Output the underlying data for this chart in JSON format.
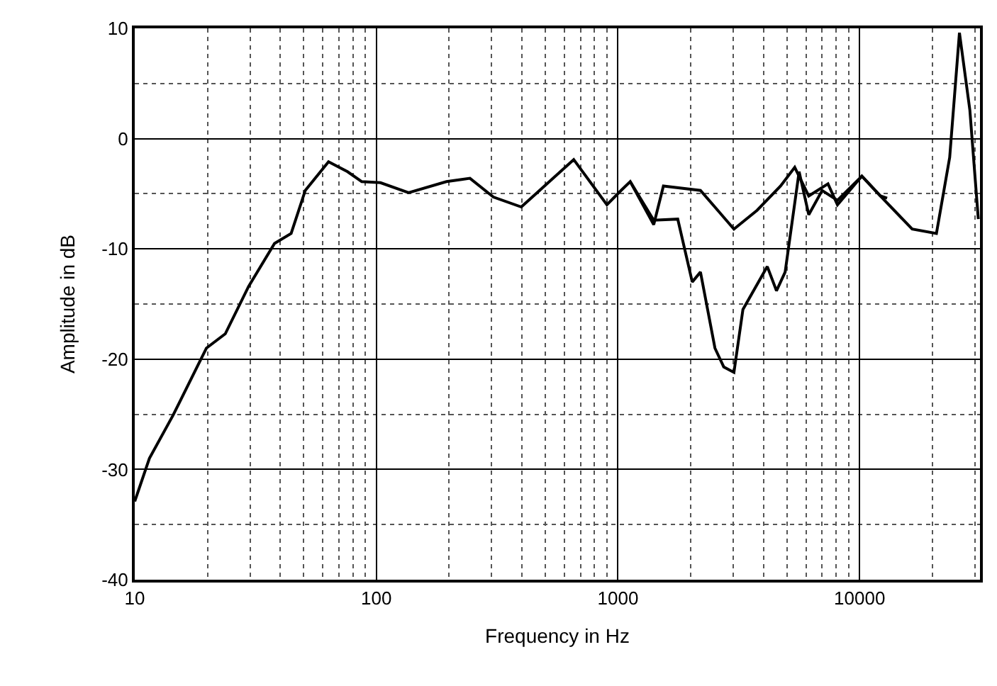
{
  "chart_data": {
    "type": "line",
    "xlabel": "Frequency in Hz",
    "ylabel": "Amplitude in dB",
    "log": "x",
    "xlim": [
      10,
      31500
    ],
    "xticks": [
      10,
      100,
      1000,
      10000
    ],
    "ylim": [
      -40,
      10
    ],
    "yticks": [
      -40,
      -30,
      -20,
      -10,
      0,
      10
    ],
    "grid": true,
    "line_style": "solid",
    "series": [
      {
        "color": "#000000",
        "x": [
          10,
          11.5,
          14.4,
          19.8,
          23.7,
          29.6,
          37.9,
          44.4,
          50.8,
          63.4,
          76,
          87,
          104,
          136,
          195,
          244,
          305,
          398,
          656,
          900,
          1030,
          1124,
          1406,
          1768,
          2030,
          2195,
          2520,
          2740,
          3020,
          3290,
          4150,
          4530,
          4920,
          5620,
          6160,
          7000,
          8100,
          10220,
          12200,
          13000
        ],
        "values": [
          -32.9,
          -29,
          -25.1,
          -19,
          -17.7,
          -13.4,
          -9.5,
          -8.6,
          -4.7,
          -2.1,
          -3,
          -3.9,
          -4,
          -4.9,
          -3.9,
          -3.6,
          -5.3,
          -6.2,
          -1.9,
          -6,
          -4.7,
          -3.9,
          -7.4,
          -7.3,
          -13,
          -12.1,
          -19,
          -20.7,
          -21.2,
          -15.5,
          -11.6,
          -13.8,
          -12.1,
          -3,
          -6.9,
          -4.7,
          -5.6,
          -3.4,
          -5.2,
          -5.4
        ]
      },
      {
        "color": "#000000",
        "x": [
          1124,
          1406,
          1542,
          2195,
          3020,
          3766,
          4710,
          5390,
          6160,
          7400,
          8100,
          10220,
          12200,
          16500,
          20800,
          23600,
          25900,
          28600,
          31000
        ],
        "values": [
          -3.9,
          -7.8,
          -4.3,
          -4.7,
          -8.2,
          -6.5,
          -4.3,
          -2.6,
          -5.2,
          -4.1,
          -6,
          -3.4,
          -5.2,
          -8.2,
          -8.6,
          -1.7,
          9.6,
          2.6,
          -7.3
        ]
      }
    ]
  }
}
